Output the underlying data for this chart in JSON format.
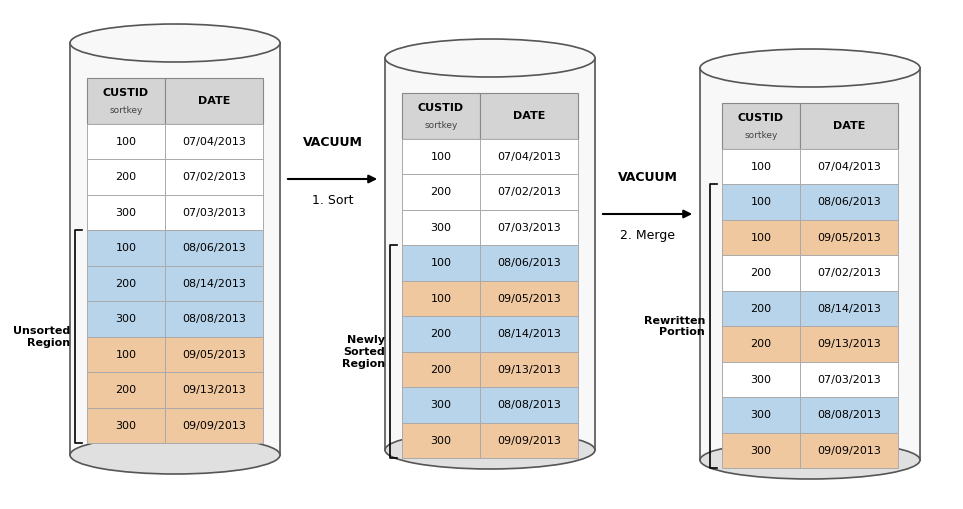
{
  "bg_color": "#ffffff",
  "table_header_color": "#d4d4d4",
  "row_white": "#ffffff",
  "row_blue": "#b8d4ea",
  "row_orange": "#f0c8a0",
  "col_header1": "CUSTID\nsortkey",
  "col_header2": "DATE",
  "table1_rows": [
    [
      "100",
      "07/04/2013",
      "white"
    ],
    [
      "200",
      "07/02/2013",
      "white"
    ],
    [
      "300",
      "07/03/2013",
      "white"
    ],
    [
      "100",
      "08/06/2013",
      "blue"
    ],
    [
      "200",
      "08/14/2013",
      "blue"
    ],
    [
      "300",
      "08/08/2013",
      "blue"
    ],
    [
      "100",
      "09/05/2013",
      "orange"
    ],
    [
      "200",
      "09/13/2013",
      "orange"
    ],
    [
      "300",
      "09/09/2013",
      "orange"
    ]
  ],
  "table2_rows": [
    [
      "100",
      "07/04/2013",
      "white"
    ],
    [
      "200",
      "07/02/2013",
      "white"
    ],
    [
      "300",
      "07/03/2013",
      "white"
    ],
    [
      "100",
      "08/06/2013",
      "blue"
    ],
    [
      "100",
      "09/05/2013",
      "orange"
    ],
    [
      "200",
      "08/14/2013",
      "blue"
    ],
    [
      "200",
      "09/13/2013",
      "orange"
    ],
    [
      "300",
      "08/08/2013",
      "blue"
    ],
    [
      "300",
      "09/09/2013",
      "orange"
    ]
  ],
  "table3_rows": [
    [
      "100",
      "07/04/2013",
      "white"
    ],
    [
      "100",
      "08/06/2013",
      "blue"
    ],
    [
      "100",
      "09/05/2013",
      "orange"
    ],
    [
      "200",
      "07/02/2013",
      "white"
    ],
    [
      "200",
      "08/14/2013",
      "blue"
    ],
    [
      "200",
      "09/13/2013",
      "orange"
    ],
    [
      "300",
      "07/03/2013",
      "white"
    ],
    [
      "300",
      "08/08/2013",
      "blue"
    ],
    [
      "300",
      "09/09/2013",
      "orange"
    ]
  ],
  "vacuum1_label": "VACUUM",
  "sort_label": "1. Sort",
  "vacuum2_label": "VACUUM",
  "merge_label": "2. Merge",
  "unsorted_label": "Unsorted\nRegion",
  "newly_sorted_label": "Newly\nSorted\nRegion",
  "rewritten_label": "Rewritten\nPortion",
  "cyl_edge_color": "#555555",
  "cyl_face_color": "#f8f8f8",
  "cyl_bottom_color": "#e0e0e0"
}
